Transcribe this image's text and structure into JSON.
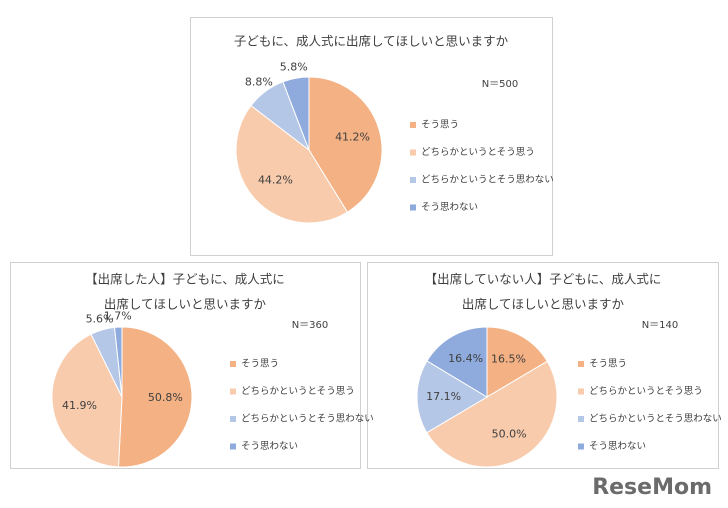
{
  "chart_data": [
    {
      "type": "pie",
      "title": [
        "子どもに、成人式に出席してほしいと思いますか"
      ],
      "note": "N＝500",
      "categories": [
        "そう思う",
        "どちらかというとそう思う",
        "どちらかというとそう思わない",
        "そう思わない"
      ],
      "colors": [
        "#f4b183",
        "#f8cbad",
        "#b4c7e7",
        "#8faadc"
      ],
      "values": [
        41.2,
        44.2,
        8.8,
        5.8
      ],
      "value_labels": [
        "41.2%",
        "44.2%",
        "8.8%",
        "5.8%"
      ]
    },
    {
      "type": "pie",
      "title": [
        "【出席した人】子どもに、成人式に",
        "出席してほしいと思いますか"
      ],
      "note": "N＝360",
      "categories": [
        "そう思う",
        "どちらかというとそう思う",
        "どちらかというとそう思わない",
        "そう思わない"
      ],
      "colors": [
        "#f4b183",
        "#f8cbad",
        "#b4c7e7",
        "#8faadc"
      ],
      "values": [
        50.8,
        41.9,
        5.6,
        1.7
      ],
      "value_labels": [
        "50.8%",
        "41.9%",
        "5.6%",
        "1.7%"
      ]
    },
    {
      "type": "pie",
      "title": [
        "【出席していない人】子どもに、成人式に",
        "出席してほしいと思いますか"
      ],
      "note": "N＝140",
      "categories": [
        "そう思う",
        "どちらかというとそう思う",
        "どちらかというとそう思わない",
        "そう思わない"
      ],
      "colors": [
        "#f4b183",
        "#f8cbad",
        "#b4c7e7",
        "#8faadc"
      ],
      "values": [
        16.5,
        50.0,
        17.1,
        16.4
      ],
      "value_labels": [
        "16.5%",
        "50.0%",
        "17.1%",
        "16.4%"
      ]
    }
  ],
  "watermark": "ReseMom"
}
